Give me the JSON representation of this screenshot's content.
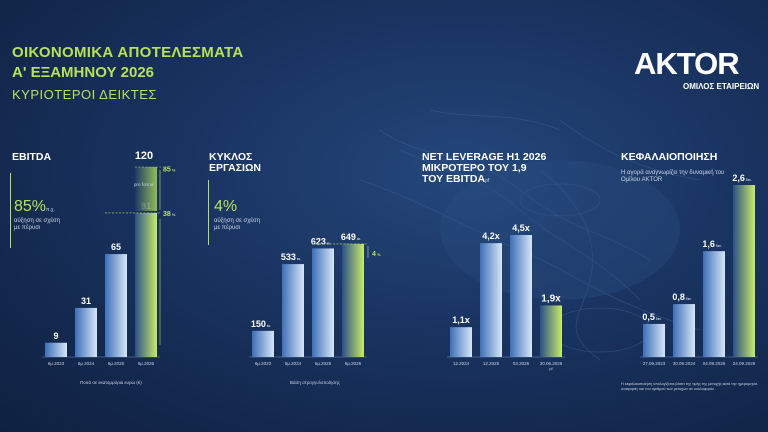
{
  "header": {
    "title_line1": "ΟΙΚΟΝΟΜΙΚΑ ΑΠΟΤΕΛΕΣΜΑΤΑ",
    "title_line2": "Α' ΕΞΑΜΗΝΟΥ 2026",
    "subtitle": "ΚΥΡΙΟΤΕΡΟΙ ΔΕΙΚΤΕΣ"
  },
  "logo": {
    "text": "AKTOR",
    "tagline": "ΟΜΙΛΟΣ ΕΤΑΙΡΕΙΩΝ"
  },
  "colors": {
    "accent_green": "#b7e15a",
    "bar_blue_light": "#cfe0f5",
    "bar_blue_dark": "#3d6fb8",
    "background": "#1a3563"
  },
  "chart_data": [
    {
      "type": "bar",
      "title": "EBITDA",
      "categories": [
        "6μ.2023",
        "6μ.2024",
        "6μ.2025",
        "6μ.2026"
      ],
      "values": [
        9,
        31,
        65,
        91
      ],
      "value_labels": [
        "9",
        "31",
        "65",
        "91"
      ],
      "projection": {
        "category": "6μ.2026",
        "value": 120,
        "label": "120",
        "note": "pro forma"
      },
      "growth": {
        "value": "85%",
        "suffix": "π.χ.",
        "note": "αύξηση σε σχέση με πέρυσι"
      },
      "markers": [
        {
          "label": "85",
          "unit": "%"
        },
        {
          "label": "38",
          "unit": "%"
        }
      ],
      "footnote": "Ποσά σε εκατομμύρια ευρώ (€)"
    },
    {
      "type": "bar",
      "title_line1": "ΚΥΚΛΟΣ",
      "title_line2": "ΕΡΓΑΣΙΩΝ",
      "categories": [
        "6μ.2023",
        "6μ.2024",
        "6μ.2025",
        "6μ.2026"
      ],
      "values": [
        150,
        533,
        623,
        649
      ],
      "value_labels": [
        "150",
        "533",
        "623",
        "649"
      ],
      "unit_suffix": "εκ.",
      "growth": {
        "value": "4%",
        "note": "αύξηση σε σχέση με πέρυσι"
      },
      "markers": [
        {
          "label": "4",
          "unit": "%"
        }
      ],
      "footnote": "Βάση στρογγυλοποίησης"
    },
    {
      "type": "bar",
      "title_line1": "NET LEVERAGE H1 2026",
      "title_line2": "ΜΙΚΡΟΤΕΡΟ ΤΟΥ 1,9",
      "title_line3": "ΤΟΥ EBITDA",
      "title_suffix": "pf",
      "categories": [
        "12.2024",
        "12.2025",
        "03.2026",
        "30.06.2026"
      ],
      "category_note": "pf",
      "values": [
        1.1,
        4.2,
        4.5,
        1.9
      ],
      "value_labels": [
        "1,1x",
        "4,2x",
        "4,5x",
        "1,9x"
      ]
    },
    {
      "type": "bar",
      "title": "ΚΕΦΑΛΑΙΟΠΟΙΗΣΗ",
      "subtitle": "Η αγορά αναγνωρίζει την δυναμική του Ομίλου AKTOR",
      "categories": [
        "27.09.2023",
        "30.09.2024",
        "04.09.2025",
        "24.09.2026"
      ],
      "values": [
        0.5,
        0.8,
        1.6,
        2.6
      ],
      "value_labels": [
        "0,5",
        "0,8",
        "1,6",
        "2,6"
      ],
      "unit_suffix": "δισ.",
      "footnote": "Η κεφαλαιοποίηση υπολογίζεται βάσει της τιμής της μετοχής κατά την ημερομηνία αναφοράς και του αριθμού των μετοχών σε κυκλοφορία"
    }
  ]
}
